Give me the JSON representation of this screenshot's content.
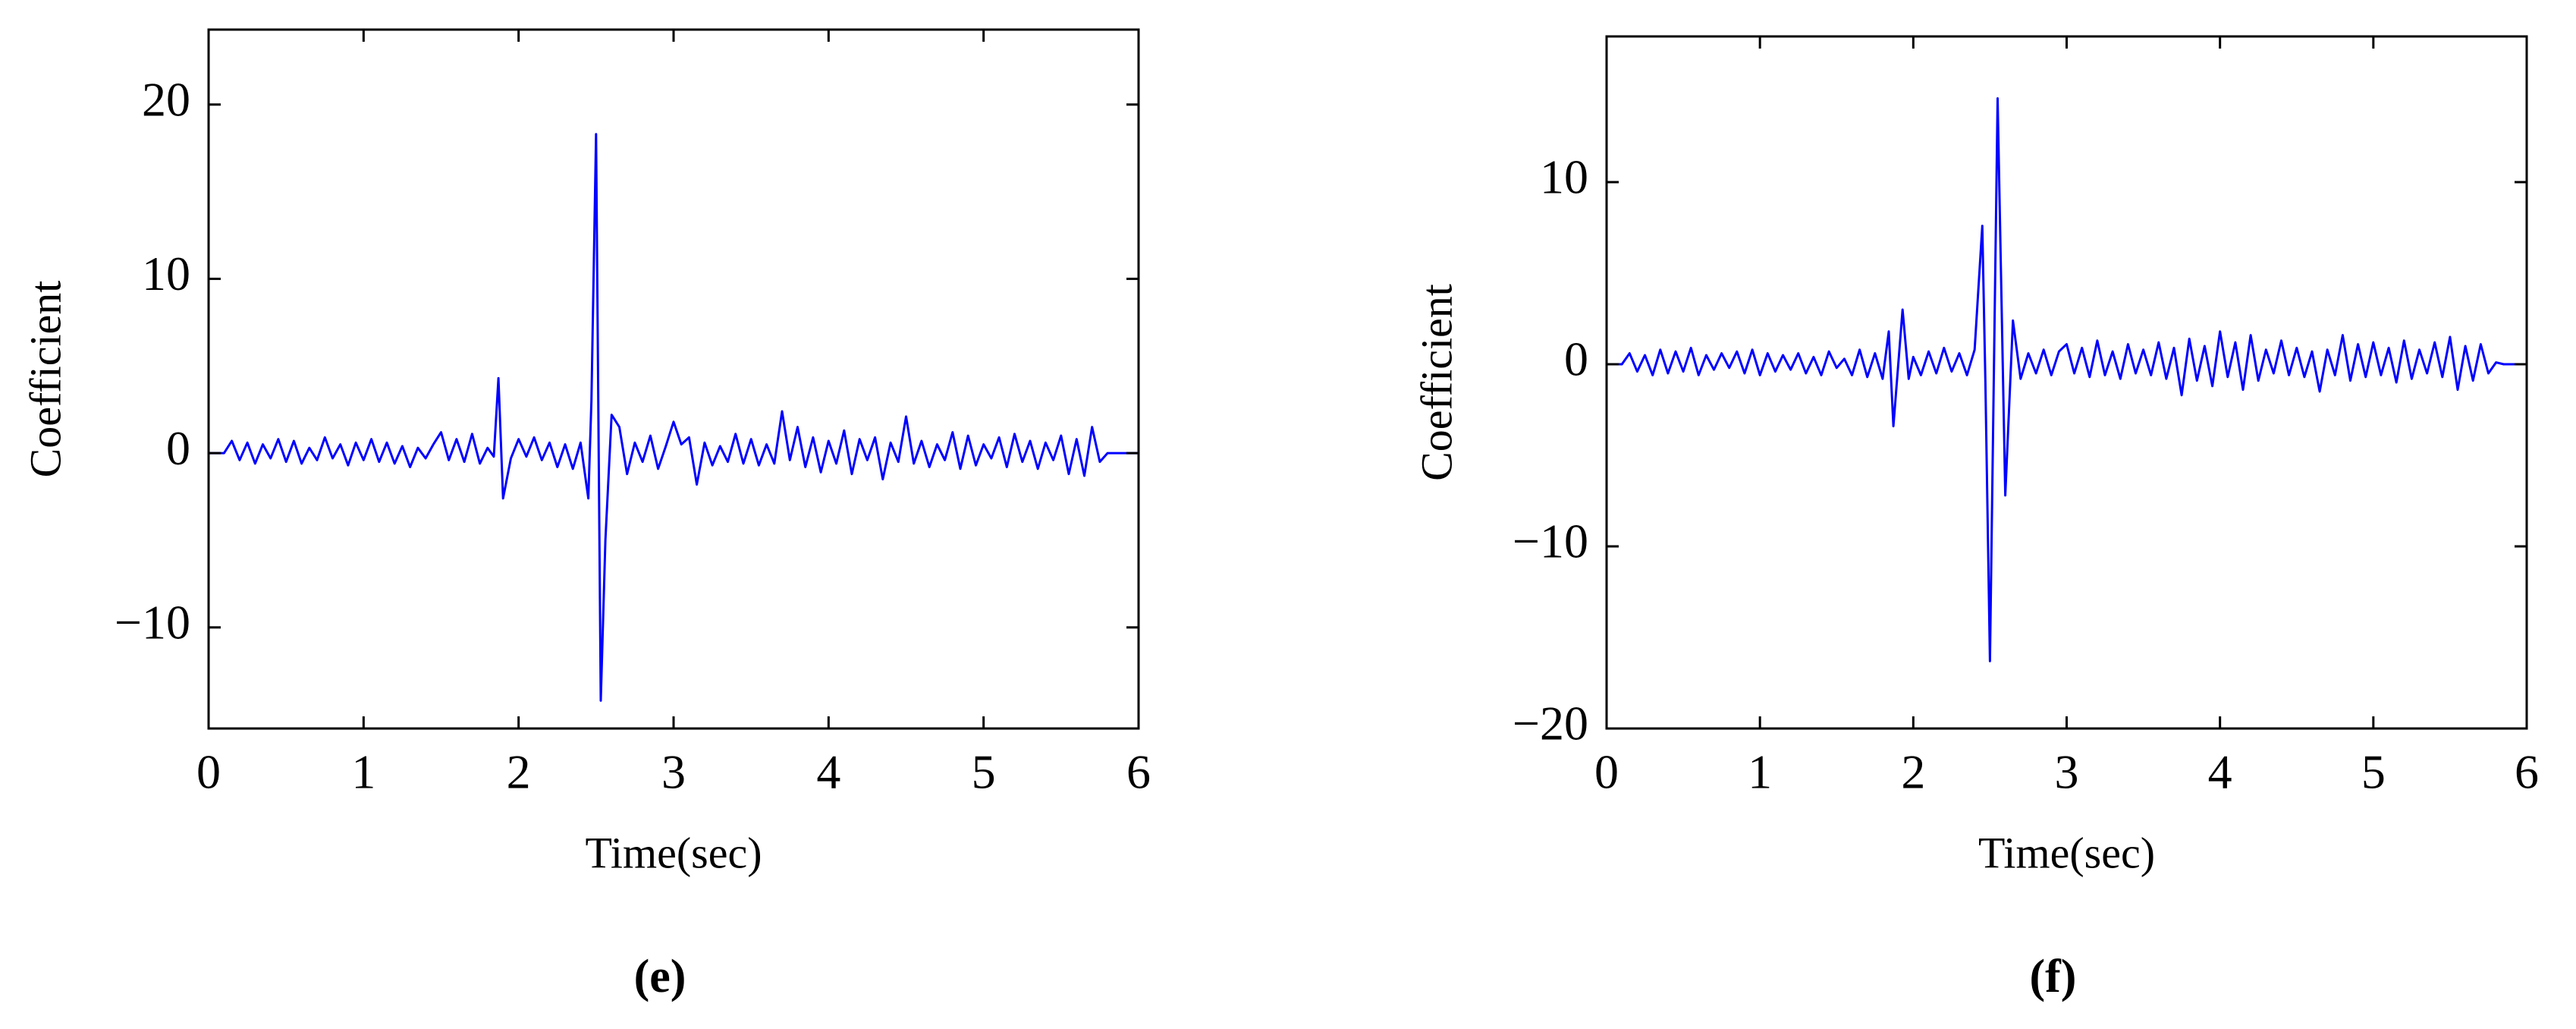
{
  "chart_data": [
    {
      "type": "line",
      "caption": "(e)",
      "xlabel": "Time(sec)",
      "ylabel": "Coefficient",
      "color": "#0000ff",
      "xlim": [
        0,
        6
      ],
      "xticks": [
        0,
        1,
        2,
        3,
        4,
        5,
        6
      ],
      "ylim": [
        -15.8,
        24.3
      ],
      "yticks": [
        {
          "value": -10,
          "label": "−10"
        },
        0,
        10,
        20
      ],
      "x": [
        0,
        0.1,
        0.15,
        0.2,
        0.25,
        0.3,
        0.35,
        0.4,
        0.45,
        0.5,
        0.55,
        0.6,
        0.65,
        0.7,
        0.75,
        0.8,
        0.85,
        0.9,
        0.95,
        1.0,
        1.05,
        1.1,
        1.15,
        1.2,
        1.25,
        1.3,
        1.35,
        1.4,
        1.45,
        1.5,
        1.55,
        1.6,
        1.65,
        1.7,
        1.75,
        1.8,
        1.84,
        1.87,
        1.9,
        1.95,
        2.0,
        2.05,
        2.1,
        2.15,
        2.2,
        2.25,
        2.3,
        2.35,
        2.4,
        2.45,
        2.47,
        2.5,
        2.53,
        2.56,
        2.6,
        2.65,
        2.7,
        2.75,
        2.8,
        2.85,
        2.9,
        2.95,
        3.0,
        3.05,
        3.1,
        3.15,
        3.2,
        3.25,
        3.3,
        3.35,
        3.4,
        3.45,
        3.5,
        3.55,
        3.6,
        3.65,
        3.7,
        3.75,
        3.8,
        3.85,
        3.9,
        3.95,
        4.0,
        4.05,
        4.1,
        4.15,
        4.2,
        4.25,
        4.3,
        4.35,
        4.4,
        4.45,
        4.5,
        4.55,
        4.6,
        4.65,
        4.7,
        4.75,
        4.8,
        4.85,
        4.9,
        4.95,
        5.0,
        5.05,
        5.1,
        5.15,
        5.2,
        5.25,
        5.3,
        5.35,
        5.4,
        5.45,
        5.5,
        5.55,
        5.6,
        5.65,
        5.7,
        5.75,
        5.8,
        6.0
      ],
      "values": [
        0,
        0,
        0.7,
        -0.4,
        0.6,
        -0.6,
        0.5,
        -0.3,
        0.8,
        -0.5,
        0.7,
        -0.6,
        0.3,
        -0.4,
        0.9,
        -0.3,
        0.5,
        -0.7,
        0.6,
        -0.4,
        0.8,
        -0.5,
        0.6,
        -0.6,
        0.4,
        -0.8,
        0.3,
        -0.3,
        0.5,
        1.2,
        -0.4,
        0.8,
        -0.5,
        1.1,
        -0.6,
        0.3,
        -0.2,
        4.3,
        -2.6,
        -0.3,
        0.8,
        -0.2,
        0.9,
        -0.4,
        0.6,
        -0.8,
        0.5,
        -0.9,
        0.6,
        -2.6,
        3,
        18.3,
        -14.2,
        -5,
        2.2,
        1.5,
        -1.2,
        0.6,
        -0.5,
        1,
        -0.9,
        0.4,
        1.8,
        0.5,
        0.9,
        -1.8,
        0.6,
        -0.7,
        0.4,
        -0.5,
        1.1,
        -0.6,
        0.8,
        -0.7,
        0.5,
        -0.6,
        2.4,
        -0.4,
        1.5,
        -0.8,
        0.9,
        -1.1,
        0.7,
        -0.6,
        1.3,
        -1.2,
        0.8,
        -0.4,
        0.9,
        -1.5,
        0.6,
        -0.5,
        2.1,
        -0.6,
        0.7,
        -0.8,
        0.5,
        -0.4,
        1.2,
        -0.9,
        1,
        -0.7,
        0.5,
        -0.3,
        0.9,
        -0.8,
        1.1,
        -0.5,
        0.7,
        -0.9,
        0.6,
        -0.4,
        1.0,
        -1.2,
        0.8,
        -1.3,
        1.5,
        -0.5,
        0,
        0
      ]
    },
    {
      "type": "line",
      "caption": "(f)",
      "xlabel": "Time(sec)",
      "ylabel": "Coefficient",
      "color": "#0000ff",
      "xlim": [
        0,
        6
      ],
      "xticks": [
        0,
        1,
        2,
        3,
        4,
        5,
        6
      ],
      "ylim": [
        -20,
        18
      ],
      "yticks": [
        {
          "value": -20,
          "label": "−20"
        },
        {
          "value": -10,
          "label": "−10"
        },
        0,
        10
      ],
      "x": [
        0,
        0.1,
        0.15,
        0.2,
        0.25,
        0.3,
        0.35,
        0.4,
        0.45,
        0.5,
        0.55,
        0.6,
        0.65,
        0.7,
        0.75,
        0.8,
        0.85,
        0.9,
        0.95,
        1.0,
        1.05,
        1.1,
        1.15,
        1.2,
        1.25,
        1.3,
        1.35,
        1.4,
        1.45,
        1.5,
        1.55,
        1.6,
        1.65,
        1.7,
        1.75,
        1.8,
        1.84,
        1.87,
        1.93,
        1.97,
        2.0,
        2.05,
        2.1,
        2.15,
        2.2,
        2.25,
        2.3,
        2.35,
        2.4,
        2.45,
        2.47,
        2.5,
        2.55,
        2.6,
        2.65,
        2.7,
        2.75,
        2.8,
        2.85,
        2.9,
        2.95,
        3.0,
        3.05,
        3.1,
        3.15,
        3.2,
        3.25,
        3.3,
        3.35,
        3.4,
        3.45,
        3.5,
        3.55,
        3.6,
        3.65,
        3.7,
        3.75,
        3.8,
        3.85,
        3.9,
        3.95,
        4.0,
        4.05,
        4.1,
        4.15,
        4.2,
        4.25,
        4.3,
        4.35,
        4.4,
        4.45,
        4.5,
        4.55,
        4.6,
        4.65,
        4.7,
        4.75,
        4.8,
        4.85,
        4.9,
        4.95,
        5.0,
        5.05,
        5.1,
        5.15,
        5.2,
        5.25,
        5.3,
        5.35,
        5.4,
        5.45,
        5.5,
        5.55,
        5.6,
        5.65,
        5.7,
        5.75,
        5.8,
        5.85,
        6.0
      ],
      "values": [
        0,
        0,
        0.6,
        -0.4,
        0.5,
        -0.6,
        0.8,
        -0.5,
        0.7,
        -0.4,
        0.9,
        -0.6,
        0.5,
        -0.3,
        0.6,
        -0.2,
        0.7,
        -0.5,
        0.8,
        -0.6,
        0.6,
        -0.4,
        0.5,
        -0.3,
        0.6,
        -0.5,
        0.4,
        -0.6,
        0.7,
        -0.2,
        0.3,
        -0.6,
        0.8,
        -0.7,
        0.6,
        -0.8,
        1.8,
        -3.4,
        3,
        -0.8,
        0.4,
        -0.6,
        0.7,
        -0.5,
        0.9,
        -0.4,
        0.6,
        -0.6,
        0.8,
        7.6,
        -1,
        -16.3,
        14.6,
        -7.2,
        2.4,
        -0.8,
        0.6,
        -0.5,
        0.8,
        -0.6,
        0.7,
        1.1,
        -0.5,
        0.9,
        -0.7,
        1.3,
        -0.6,
        0.7,
        -0.8,
        1.1,
        -0.5,
        0.8,
        -0.6,
        1.2,
        -0.8,
        0.9,
        -1.7,
        1.4,
        -0.9,
        1,
        -1.2,
        1.8,
        -0.7,
        1.2,
        -1.4,
        1.6,
        -0.9,
        0.8,
        -0.5,
        1.3,
        -0.6,
        0.9,
        -0.7,
        0.7,
        -1.5,
        0.8,
        -0.6,
        1.6,
        -0.9,
        1.1,
        -0.7,
        1.2,
        -0.6,
        0.9,
        -1,
        1.3,
        -0.8,
        0.8,
        -0.5,
        1.2,
        -0.7,
        1.5,
        -1.4,
        1,
        -0.9,
        1.1,
        -0.5,
        0.1,
        0,
        0
      ]
    }
  ]
}
